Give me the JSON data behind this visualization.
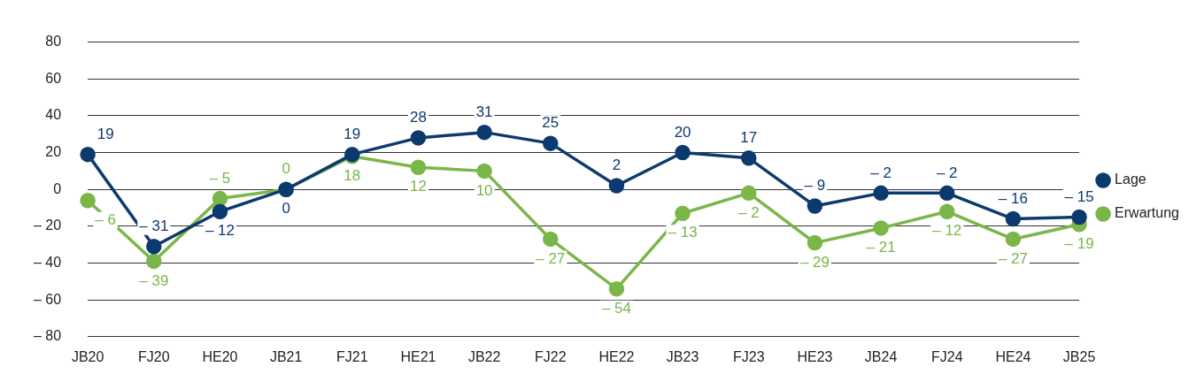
{
  "chart_data": {
    "type": "line",
    "categories": [
      "JB20",
      "FJ20",
      "HE20",
      "JB21",
      "FJ21",
      "HE21",
      "JB22",
      "FJ22",
      "HE22",
      "JB23",
      "FJ23",
      "HE23",
      "JB24",
      "FJ24",
      "HE24",
      "JB25"
    ],
    "series": [
      {
        "name": "Lage",
        "color": "#0d3a6e",
        "values": [
          19,
          -31,
          -12,
          0,
          19,
          28,
          31,
          25,
          2,
          20,
          17,
          -9,
          -2,
          -2,
          -16,
          -15
        ],
        "value_labels": [
          "19",
          "– 31",
          "– 12",
          "0",
          "19",
          "28",
          "31",
          "25",
          "2",
          "20",
          "17",
          "– 9",
          "– 2",
          "– 2",
          "– 16",
          "– 15"
        ]
      },
      {
        "name": "Erwartung",
        "color": "#7ab648",
        "values": [
          -6,
          -39,
          -5,
          0,
          18,
          12,
          10,
          -27,
          -54,
          -13,
          -2,
          -29,
          -21,
          -12,
          -27,
          -19
        ],
        "value_labels": [
          "– 6",
          "– 39",
          "– 5",
          "0",
          "18",
          "12",
          "10",
          "– 27",
          "– 54",
          "– 13",
          "– 2",
          "– 29",
          "– 21",
          "– 12",
          "– 27",
          "– 19"
        ]
      }
    ],
    "ylim": [
      -80,
      80
    ],
    "yticks": [
      {
        "value": -80,
        "label": "– 80"
      },
      {
        "value": -60,
        "label": "– 60"
      },
      {
        "value": -40,
        "label": "– 40"
      },
      {
        "value": -20,
        "label": "– 20"
      },
      0,
      20,
      40,
      60,
      80
    ],
    "grid": "y",
    "legend": "right",
    "marker": "circle",
    "line_style": "solid"
  }
}
